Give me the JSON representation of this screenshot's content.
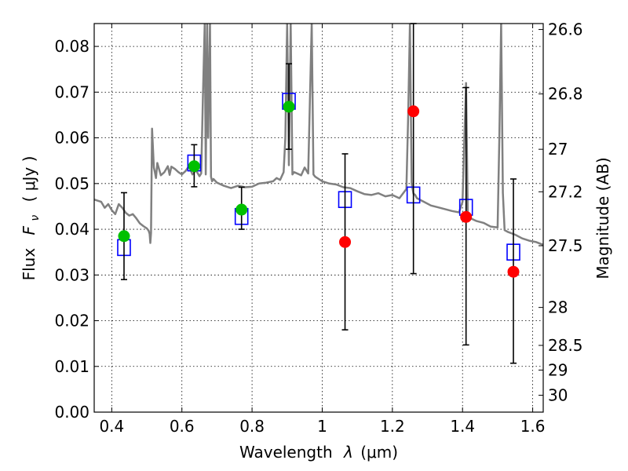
{
  "chart_data": {
    "type": "scatter",
    "xlabel": "Wavelength",
    "xlabel_symbol": "λ",
    "xlabel_unit": "(μm)",
    "ylabel": "Flux",
    "ylabel_symbol": "F",
    "ylabel_subscript": "ν",
    "ylabel_unit": "( μJy )",
    "ylabel_right": "Magnitude (AB)",
    "xlim": [
      0.35,
      1.63
    ],
    "ylim": [
      0.0,
      0.085
    ],
    "grid": true,
    "x_ticks": [
      0.4,
      0.6,
      0.8,
      1.0,
      1.2,
      1.4,
      1.6
    ],
    "x_tick_labels": [
      "0.4",
      "0.6",
      "0.8",
      "1",
      "1.2",
      "1.4",
      "1.6"
    ],
    "y_ticks": [
      0.0,
      0.01,
      0.02,
      0.03,
      0.04,
      0.05,
      0.06,
      0.07,
      0.08
    ],
    "y_tick_labels": [
      "0.00",
      "0.01",
      "0.02",
      "0.03",
      "0.04",
      "0.05",
      "0.06",
      "0.07",
      "0.08"
    ],
    "right_ticks": [
      {
        "flux": 0.0837,
        "label": "26.6"
      },
      {
        "flux": 0.0696,
        "label": "26.8"
      },
      {
        "flux": 0.0575,
        "label": "27"
      },
      {
        "flux": 0.0482,
        "label": "27.2"
      },
      {
        "flux": 0.0364,
        "label": "27.5"
      },
      {
        "flux": 0.0229,
        "label": "28"
      },
      {
        "flux": 0.0146,
        "label": "28.5"
      },
      {
        "flux": 0.0092,
        "label": "29"
      },
      {
        "flux": 0.0037,
        "label": "30"
      }
    ],
    "series": [
      {
        "marker": "open-square",
        "color": "#0000ff",
        "x": [
          0.435,
          0.635,
          0.77,
          0.905,
          1.065,
          1.26,
          1.41,
          1.545
        ],
        "y": [
          0.036,
          0.0545,
          0.0428,
          0.068,
          0.0465,
          0.0475,
          0.0448,
          0.035
        ]
      },
      {
        "marker": "filled-circle",
        "color": "#00c000",
        "x": [
          0.435,
          0.635,
          0.77,
          0.905
        ],
        "y": [
          0.0385,
          0.0538,
          0.0443,
          0.0668
        ],
        "yerr_low": [
          0.029,
          0.0493,
          0.04,
          0.0575
        ],
        "yerr_high": [
          0.048,
          0.0585,
          0.0492,
          0.0762
        ]
      },
      {
        "marker": "filled-circle",
        "color": "#ff0000",
        "x": [
          1.065,
          1.26,
          1.41,
          1.545
        ],
        "y": [
          0.0372,
          0.0658,
          0.0427,
          0.0307
        ],
        "yerr_low": [
          0.018,
          0.0303,
          0.0147,
          0.0107
        ],
        "yerr_high": [
          0.0565,
          0.085,
          0.071,
          0.051
        ]
      }
    ],
    "sed_model": {
      "color": "#808080",
      "x": [
        0.35,
        0.37,
        0.38,
        0.39,
        0.4,
        0.41,
        0.42,
        0.43,
        0.44,
        0.45,
        0.46,
        0.47,
        0.48,
        0.49,
        0.5,
        0.505,
        0.508,
        0.51,
        0.512,
        0.515,
        0.52,
        0.523,
        0.526,
        0.53,
        0.54,
        0.55,
        0.56,
        0.565,
        0.57,
        0.58,
        0.59,
        0.6,
        0.61,
        0.62,
        0.63,
        0.64,
        0.65,
        0.655,
        0.66,
        0.665,
        0.668,
        0.672,
        0.675,
        0.68,
        0.683,
        0.686,
        0.69,
        0.7,
        0.72,
        0.74,
        0.76,
        0.78,
        0.8,
        0.82,
        0.84,
        0.86,
        0.87,
        0.88,
        0.89,
        0.895,
        0.9,
        0.905,
        0.91,
        0.915,
        0.92,
        0.94,
        0.95,
        0.96,
        0.97,
        0.975,
        0.98,
        0.99,
        1.0,
        1.02,
        1.04,
        1.06,
        1.08,
        1.1,
        1.12,
        1.14,
        1.16,
        1.18,
        1.2,
        1.22,
        1.24,
        1.245,
        1.25,
        1.255,
        1.26,
        1.265,
        1.27,
        1.29,
        1.31,
        1.33,
        1.35,
        1.37,
        1.39,
        1.4,
        1.41,
        1.415,
        1.42,
        1.44,
        1.46,
        1.48,
        1.5,
        1.505,
        1.51,
        1.515,
        1.52,
        1.53,
        1.55,
        1.57,
        1.59,
        1.61,
        1.63
      ],
      "y": [
        0.0465,
        0.046,
        0.0447,
        0.0455,
        0.0442,
        0.0433,
        0.0455,
        0.0447,
        0.0436,
        0.043,
        0.0433,
        0.0424,
        0.0413,
        0.0407,
        0.0402,
        0.0397,
        0.039,
        0.037,
        0.0392,
        0.062,
        0.0535,
        0.0525,
        0.0512,
        0.0545,
        0.0518,
        0.0525,
        0.0538,
        0.0519,
        0.0537,
        0.0532,
        0.0525,
        0.052,
        0.0527,
        0.0538,
        0.052,
        0.0529,
        0.0516,
        0.0522,
        0.069,
        0.085,
        0.052,
        0.085,
        0.06,
        0.085,
        0.0515,
        0.0505,
        0.051,
        0.0502,
        0.0495,
        0.049,
        0.0495,
        0.0492,
        0.0493,
        0.05,
        0.0502,
        0.0505,
        0.0512,
        0.0508,
        0.0525,
        0.06,
        0.085,
        0.054,
        0.085,
        0.052,
        0.0525,
        0.0518,
        0.0535,
        0.0522,
        0.085,
        0.052,
        0.0515,
        0.051,
        0.0505,
        0.05,
        0.0498,
        0.0492,
        0.049,
        0.0483,
        0.0477,
        0.0475,
        0.0479,
        0.0472,
        0.0475,
        0.0468,
        0.0488,
        0.065,
        0.085,
        0.05,
        0.0478,
        0.0475,
        0.0468,
        0.046,
        0.0452,
        0.0448,
        0.0444,
        0.044,
        0.0437,
        0.046,
        0.072,
        0.0432,
        0.0425,
        0.0418,
        0.0414,
        0.0406,
        0.0404,
        0.06,
        0.085,
        0.048,
        0.0398,
        0.0394,
        0.0388,
        0.038,
        0.0375,
        0.0372,
        0.0366
      ]
    }
  }
}
